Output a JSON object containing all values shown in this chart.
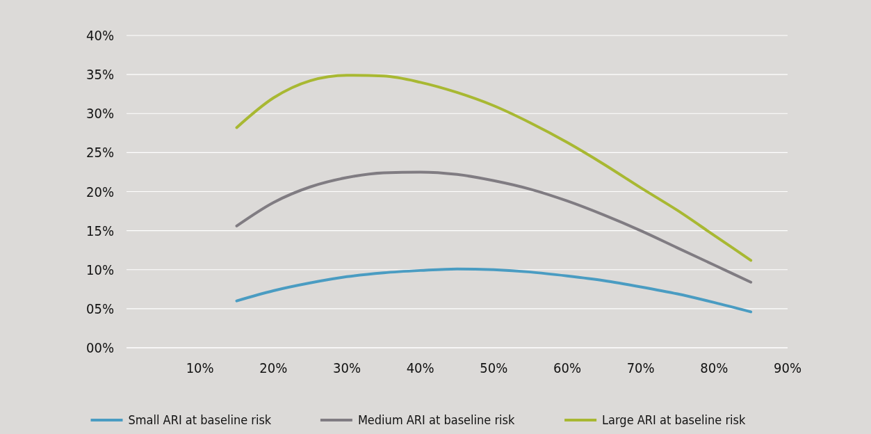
{
  "chart_data": {
    "type": "line",
    "x": [
      15,
      20,
      25,
      30,
      35,
      40,
      45,
      50,
      55,
      60,
      65,
      70,
      75,
      80,
      85
    ],
    "series": [
      {
        "name": "Small ARI at baseline risk",
        "color": "#4a9cc2",
        "values": [
          6.0,
          7.3,
          8.3,
          9.1,
          9.6,
          9.9,
          10.1,
          10.0,
          9.7,
          9.2,
          8.6,
          7.8,
          6.9,
          5.8,
          4.6
        ]
      },
      {
        "name": "Medium ARI  at baseline risk",
        "color": "#807c82",
        "values": [
          15.6,
          18.6,
          20.6,
          21.8,
          22.4,
          22.5,
          22.2,
          21.4,
          20.3,
          18.8,
          17.0,
          15.0,
          12.8,
          10.6,
          8.4
        ]
      },
      {
        "name": "Large ARI at baseline risk",
        "color": "#a8b832",
        "values": [
          28.2,
          32.0,
          34.2,
          34.9,
          34.8,
          34.0,
          32.7,
          31.0,
          28.8,
          26.3,
          23.5,
          20.5,
          17.6,
          14.4,
          11.2
        ]
      }
    ],
    "xlim": [
      0,
      90
    ],
    "xticks": [
      {
        "value": 10,
        "label": "10%"
      },
      {
        "value": 20,
        "label": "20%"
      },
      {
        "value": 30,
        "label": "30%"
      },
      {
        "value": 40,
        "label": "40%"
      },
      {
        "value": 50,
        "label": "50%"
      },
      {
        "value": 60,
        "label": "60%"
      },
      {
        "value": 70,
        "label": "70%"
      },
      {
        "value": 80,
        "label": "80%"
      },
      {
        "value": 90,
        "label": "90%"
      }
    ],
    "ylim": [
      0,
      40
    ],
    "yticks": [
      {
        "value": 0,
        "label": "00%"
      },
      {
        "value": 5,
        "label": "05%"
      },
      {
        "value": 10,
        "label": "10%"
      },
      {
        "value": 15,
        "label": "15%"
      },
      {
        "value": 20,
        "label": "20%"
      },
      {
        "value": 25,
        "label": "25%"
      },
      {
        "value": 30,
        "label": "30%"
      },
      {
        "value": 35,
        "label": "35%"
      },
      {
        "value": 40,
        "label": "40%"
      }
    ],
    "grid": "y",
    "legend": "bottom",
    "marker": "none",
    "line_style": "solid"
  }
}
